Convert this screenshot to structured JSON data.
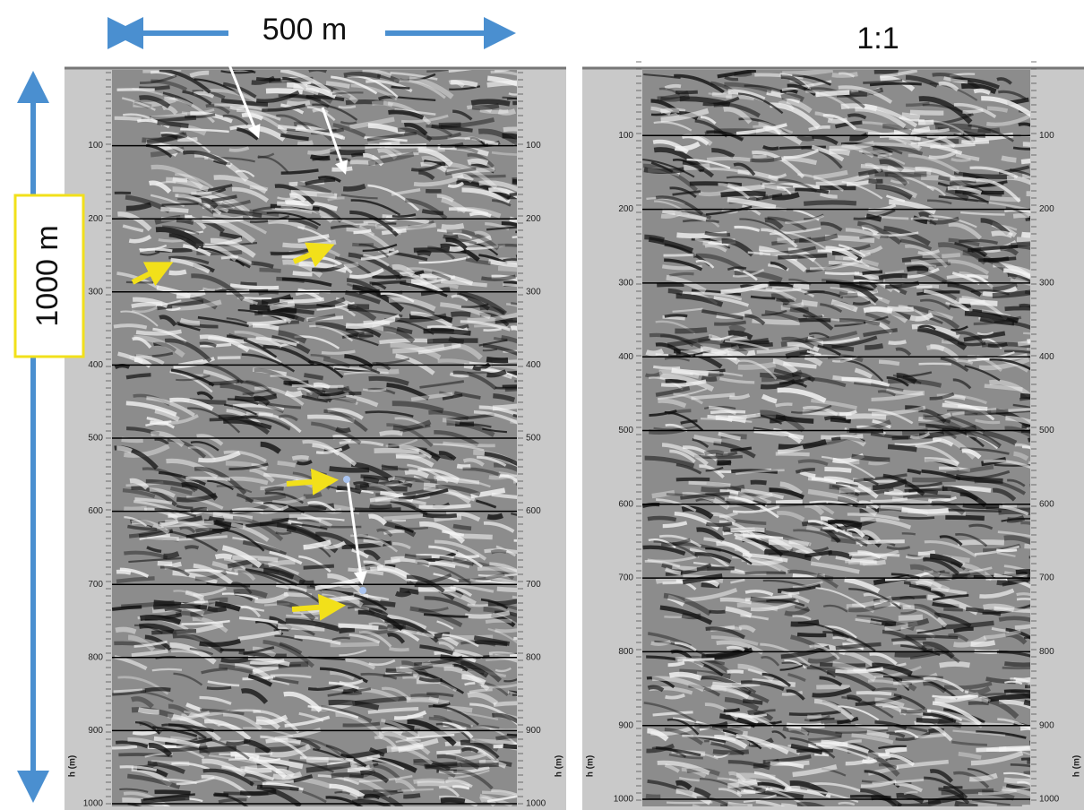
{
  "scale_label": "500 m",
  "depth_label": "1000 m",
  "ratio_label": "1:1",
  "panels": [
    {
      "axis_label": "h (m)",
      "ylim": [
        0,
        1000
      ],
      "depth_ticks": [
        100,
        200,
        300,
        400,
        500,
        600,
        700,
        800,
        900,
        1000
      ]
    },
    {
      "axis_label": "h (m)",
      "ylim": [
        0,
        1000
      ],
      "depth_ticks": [
        100,
        200,
        300,
        400,
        500,
        600,
        700,
        800,
        900,
        1000
      ]
    }
  ]
}
